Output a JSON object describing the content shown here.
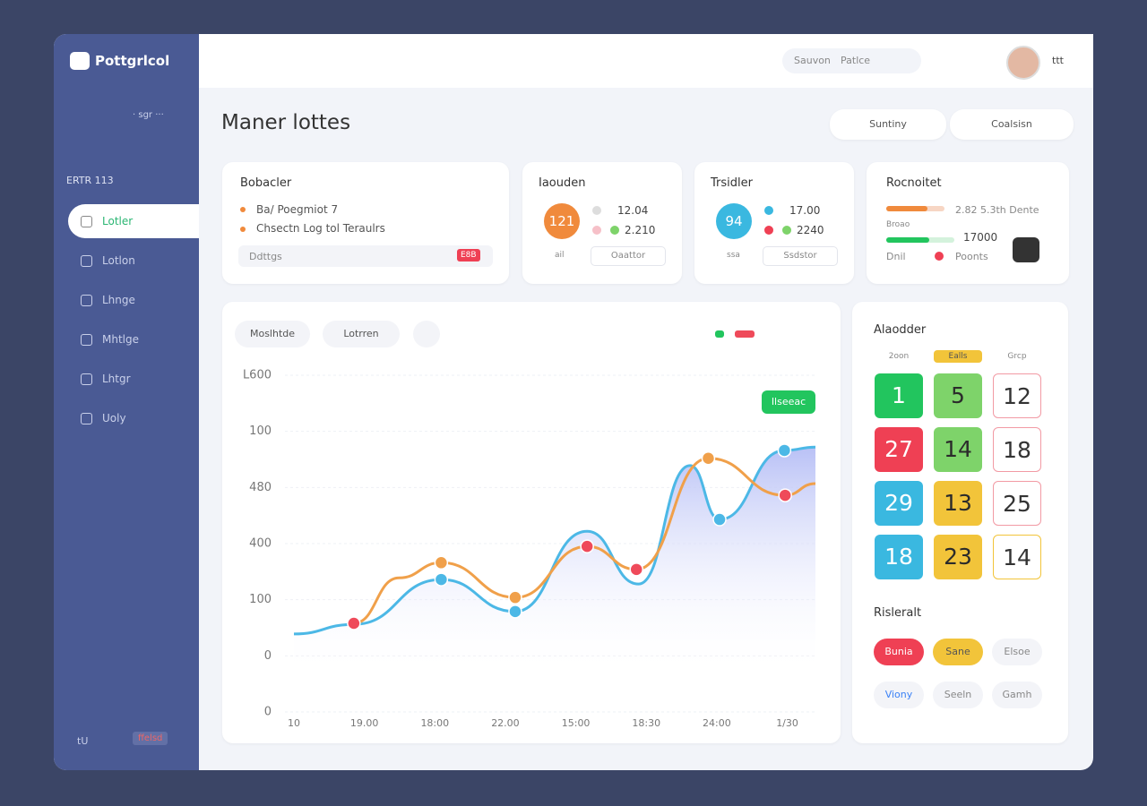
{
  "sidebar": {
    "logo": "Pottgrlcol",
    "menu_hint": "· sgr ···",
    "section": "ERTR 113",
    "nav": [
      "Lotler",
      "Lotlon",
      "Lhnge",
      "Mhtlge",
      "Lhtgr",
      "Uoly"
    ],
    "footer": "tU",
    "footer_badge": "ffelsd"
  },
  "topbar": {
    "search": "Sauvon",
    "filter": "Patlce",
    "menu": "ttt"
  },
  "header": {
    "title": "Maner lottes",
    "buttons": [
      "Suntiny",
      "Coalsisn"
    ]
  },
  "cards": {
    "tasks": {
      "title": "Bobacler",
      "items": [
        "Ba/ Poegmiot 7",
        "Chsectn Log tol Teraulrs"
      ],
      "input": "Ddttgs",
      "tag": "E8B"
    },
    "first": {
      "title": "Iaouden",
      "badge": "121",
      "values": [
        "12.04",
        "2.210"
      ],
      "label": "ail",
      "button": "Oaattor"
    },
    "second": {
      "title": "Trsidler",
      "badge": "94",
      "values": [
        "17.00",
        "2240"
      ],
      "label": "ssa",
      "button": "Ssdstor"
    },
    "report": {
      "title": "Rocnoitet",
      "line1": "2.82 5.3th Dente",
      "line2": "Broao",
      "line3": "17000",
      "line4": "Dnil",
      "line5": "Poonts"
    }
  },
  "chart": {
    "type": "line",
    "tabs": [
      "Moslhtde",
      "Lotrren"
    ],
    "badge": "Ilseeac",
    "xlim": [
      0,
      7.4
    ],
    "xticks": [
      {
        "value": 0,
        "label": "10"
      },
      {
        "value": 1,
        "label": "19.00"
      },
      {
        "value": 2,
        "label": "18:00"
      },
      {
        "value": 3,
        "label": "22.00"
      },
      {
        "value": 4,
        "label": "15:00"
      },
      {
        "value": 5,
        "label": "18:30"
      },
      {
        "value": 6,
        "label": "24:00"
      },
      {
        "value": 7,
        "label": "1/30"
      }
    ],
    "ylim": [
      0,
      6
    ],
    "yticks": [
      {
        "value": 0,
        "label": "0"
      },
      {
        "value": 1,
        "label": "0"
      },
      {
        "value": 2,
        "label": "100"
      },
      {
        "value": 3,
        "label": "400"
      },
      {
        "value": 4,
        "label": "480"
      },
      {
        "value": 5,
        "label": "100"
      },
      {
        "value": 6,
        "label": "L600"
      }
    ],
    "grid": true,
    "series": [
      {
        "color": "#4cb8e6",
        "area": true,
        "x": [
          0,
          0.85,
          2.09,
          3.14,
          4.16,
          4.89,
          5.62,
          6.04,
          6.96,
          7.4
        ],
        "values": [
          1.39,
          1.56,
          2.36,
          1.79,
          3.22,
          2.28,
          4.39,
          3.43,
          4.66,
          4.72
        ],
        "marker_colors": [
          null,
          null,
          "#4cb8e6",
          "#4cb8e6",
          null,
          null,
          null,
          "#4cb8e6",
          "#4cb8e6",
          null
        ]
      },
      {
        "color": "#f0a04a",
        "area": false,
        "x": [
          0.85,
          1.49,
          2.09,
          3.14,
          4.16,
          4.86,
          5.88,
          6.97,
          7.4
        ],
        "values": [
          1.58,
          2.39,
          2.66,
          2.04,
          2.95,
          2.54,
          4.52,
          3.86,
          4.07
        ],
        "marker_colors": [
          "#ef4a5a",
          null,
          "#f0a04a",
          "#f0a04a",
          "#ef4a5a",
          "#ef4a5a",
          "#f0a04a",
          "#ef4a5a",
          null
        ]
      }
    ]
  },
  "calendar": {
    "title": "Alaodder",
    "headers": [
      "2oon",
      "Ealls",
      "Grcp"
    ],
    "rows": [
      [
        "1",
        "5",
        "12"
      ],
      [
        "27",
        "14",
        "18"
      ],
      [
        "29",
        "13",
        "25"
      ],
      [
        "18",
        "23",
        "14"
      ]
    ],
    "colors": [
      [
        "#22c55e",
        "#7ed36a",
        "outline-red"
      ],
      [
        "#ef4054",
        "#7ed36a",
        "outline-red"
      ],
      [
        "#3ab8e0",
        "#f2c43a",
        "outline-red"
      ],
      [
        "#3ab8e0",
        "#f2c43a",
        "outline-yellow"
      ]
    ],
    "section": "Risleralt",
    "pills": [
      "Bunia",
      "Sane",
      "Elsoe",
      "Viony",
      "Seeln",
      "Gamh"
    ]
  }
}
